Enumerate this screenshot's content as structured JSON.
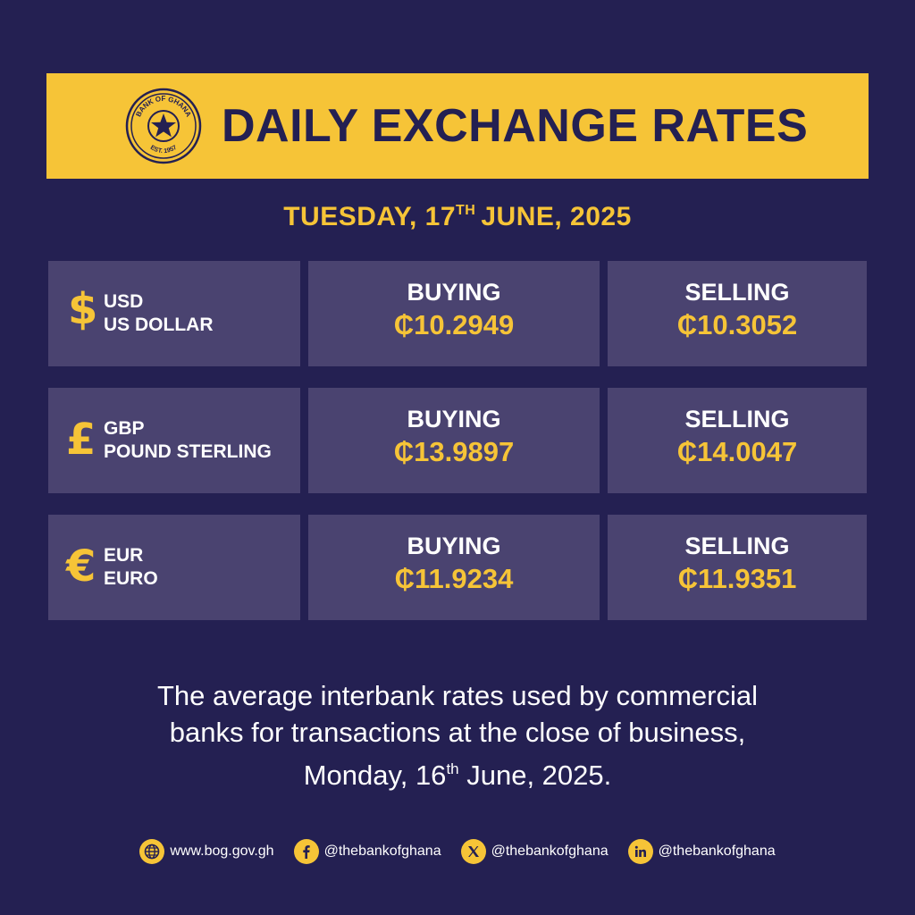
{
  "header": {
    "title": "DAILY EXCHANGE RATES",
    "seal_text_top": "BANK OF GHANA",
    "seal_text_bottom": "EST. 1957",
    "logo_icon": "star-seal-icon"
  },
  "date": {
    "weekday": "TUESDAY, 17",
    "suffix": "TH",
    "rest": "JUNE, 2025"
  },
  "rates": [
    {
      "symbol": "$",
      "code": "USD",
      "name": "US DOLLAR",
      "buying_label": "BUYING",
      "buying": "₵10.2949",
      "selling_label": "SELLING",
      "selling": "₵10.3052"
    },
    {
      "symbol": "£",
      "code": "GBP",
      "name": "POUND STERLING",
      "buying_label": "BUYING",
      "buying": "₵13.9897",
      "selling_label": "SELLING",
      "selling": "₵14.0047"
    },
    {
      "symbol": "€",
      "code": "EUR",
      "name": "EURO",
      "buying_label": "BUYING",
      "buying": "₵11.9234",
      "selling_label": "SELLING",
      "selling": "₵11.9351"
    }
  ],
  "note": {
    "line1": "The average interbank rates used by commercial",
    "line2": "banks for transactions at the close of business,",
    "line3_a": "Monday, 16",
    "line3_sup": "th",
    "line3_b": " June, 2025."
  },
  "footer": {
    "website": "www.bog.gov.gh",
    "facebook": "@thebankofghana",
    "x": "@thebankofghana",
    "linkedin": "@thebankofghana",
    "icons": [
      "globe-icon",
      "facebook-icon",
      "x-icon",
      "linkedin-icon"
    ]
  },
  "colors": {
    "background": "#242052",
    "accent": "#f6c437",
    "cell": "#4a4370"
  }
}
